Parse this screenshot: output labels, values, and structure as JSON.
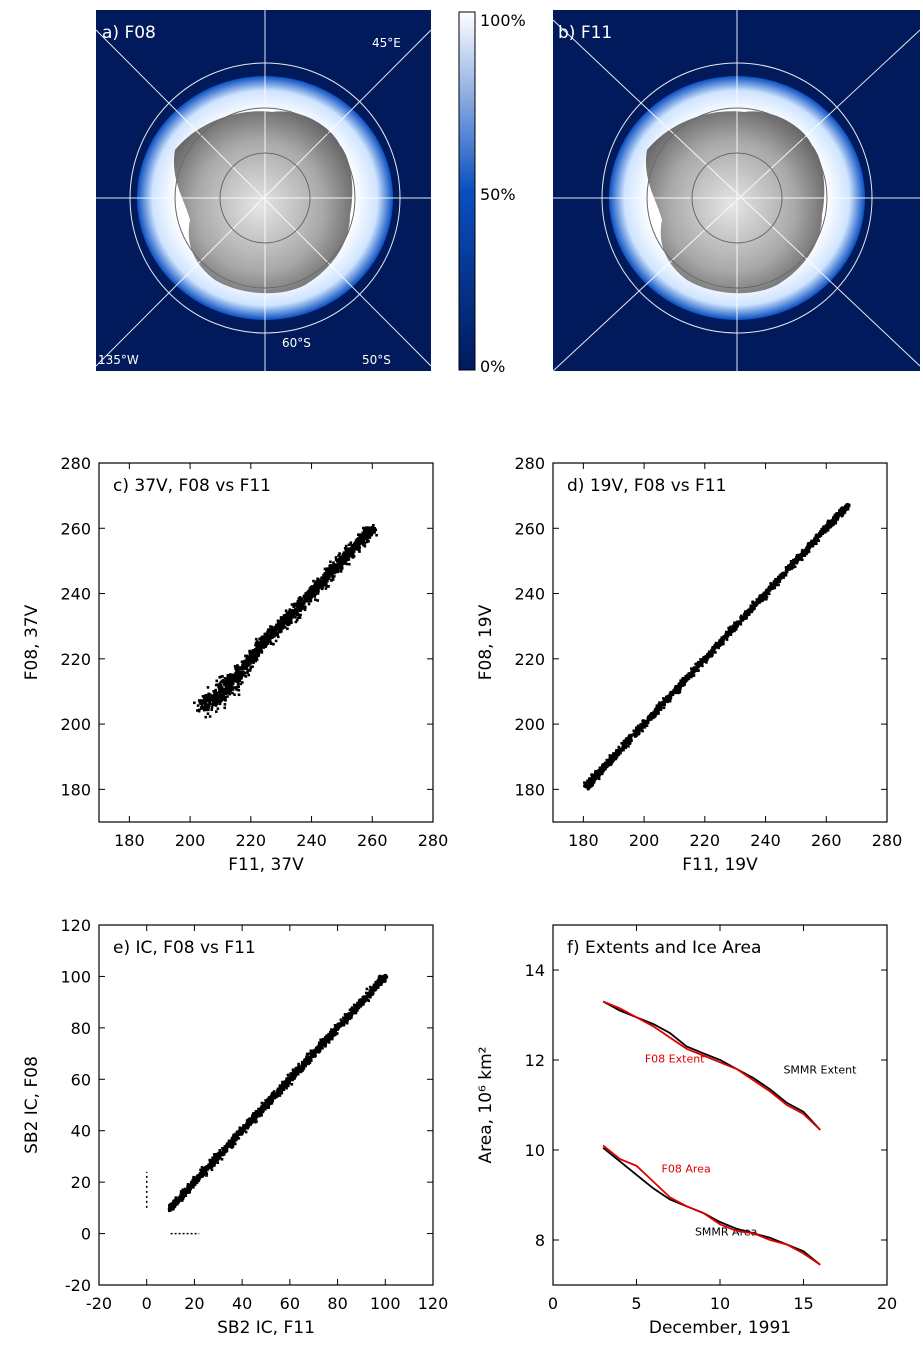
{
  "maps": {
    "panel_a": {
      "label": "a) F08",
      "lon_east": "45°E",
      "lon_west": "135°W",
      "lat_60": "60°S",
      "lat_50": "50°S"
    },
    "panel_b": {
      "label": "b) F11"
    },
    "colorbar": {
      "top": "100%",
      "mid": "50%",
      "bottom": "0%"
    },
    "colors": {
      "ocean": "#001a5c",
      "ice_low": "#0a4fc0",
      "ice_high": "#ffffff",
      "land_low": "#5a5a5a",
      "land_high": "#e6e6e6"
    }
  },
  "chart_data": [
    {
      "type": "scatter",
      "panel": "c",
      "title": "c) 37V, F08 vs F11",
      "xlabel": "F11, 37V",
      "ylabel": "F08, 37V",
      "xlim": [
        170,
        280
      ],
      "ylim": [
        170,
        280
      ],
      "xticks": [
        180,
        200,
        220,
        240,
        260,
        280
      ],
      "yticks": [
        180,
        200,
        220,
        240,
        260,
        280
      ],
      "x": [
        205,
        210,
        215,
        220,
        225,
        230,
        235,
        240,
        245,
        250,
        255,
        260
      ],
      "y": [
        205,
        210,
        214,
        220,
        226,
        230,
        235,
        240,
        245,
        250,
        255,
        260
      ]
    },
    {
      "type": "scatter",
      "panel": "d",
      "title": "d) 19V, F08 vs F11",
      "xlabel": "F11, 19V",
      "ylabel": "F08, 19V",
      "xlim": [
        170,
        280
      ],
      "ylim": [
        170,
        280
      ],
      "xticks": [
        180,
        200,
        220,
        240,
        260,
        280
      ],
      "yticks": [
        180,
        200,
        220,
        240,
        260,
        280
      ],
      "x": [
        181,
        185,
        190,
        200,
        210,
        220,
        230,
        240,
        250,
        260,
        267
      ],
      "y": [
        181,
        185,
        190,
        200,
        210,
        220,
        230,
        240,
        250,
        260,
        267
      ]
    },
    {
      "type": "scatter",
      "panel": "e",
      "title": "e) IC, F08 vs F11",
      "xlabel": "SB2 IC, F11",
      "ylabel": "SB2 IC, F08",
      "xlim": [
        -20,
        120
      ],
      "ylim": [
        -20,
        120
      ],
      "xticks": [
        -20,
        0,
        20,
        40,
        60,
        80,
        100,
        120
      ],
      "yticks": [
        -20,
        0,
        20,
        40,
        60,
        80,
        100,
        120
      ],
      "x": [
        10,
        20,
        30,
        40,
        50,
        60,
        70,
        80,
        90,
        100
      ],
      "y": [
        10,
        20,
        30,
        40,
        50,
        60,
        70,
        80,
        90,
        100
      ]
    },
    {
      "type": "line",
      "panel": "f",
      "title": "f) Extents and Ice Area",
      "xlabel": "December, 1991",
      "ylabel": "Area, 10⁶ km²",
      "xlim": [
        0,
        20
      ],
      "ylim": [
        7,
        15
      ],
      "xticks": [
        0,
        5,
        10,
        15,
        20
      ],
      "yticks": [
        8,
        10,
        12,
        14
      ],
      "x": [
        3,
        4,
        5,
        6,
        7,
        8,
        9,
        10,
        11,
        12,
        13,
        14,
        15,
        16
      ],
      "series": [
        {
          "name": "SMMR Extent",
          "color": "#000000",
          "values": [
            13.3,
            13.1,
            12.95,
            12.8,
            12.6,
            12.3,
            12.15,
            12.0,
            11.8,
            11.6,
            11.35,
            11.05,
            10.85,
            10.45
          ]
        },
        {
          "name": "F08 Extent",
          "color": "#e00000",
          "values": [
            13.3,
            13.15,
            12.95,
            12.75,
            12.5,
            12.25,
            12.1,
            11.95,
            11.8,
            11.55,
            11.3,
            11.0,
            10.8,
            10.45
          ]
        },
        {
          "name": "SMMR Area",
          "color": "#000000",
          "values": [
            10.05,
            9.75,
            9.45,
            9.15,
            8.9,
            8.75,
            8.6,
            8.4,
            8.25,
            8.15,
            8.05,
            7.9,
            7.75,
            7.45
          ]
        },
        {
          "name": "F08 Area",
          "color": "#e00000",
          "values": [
            10.1,
            9.8,
            9.65,
            9.3,
            8.95,
            8.75,
            8.6,
            8.35,
            8.2,
            8.15,
            8.0,
            7.9,
            7.7,
            7.45
          ]
        }
      ]
    }
  ]
}
